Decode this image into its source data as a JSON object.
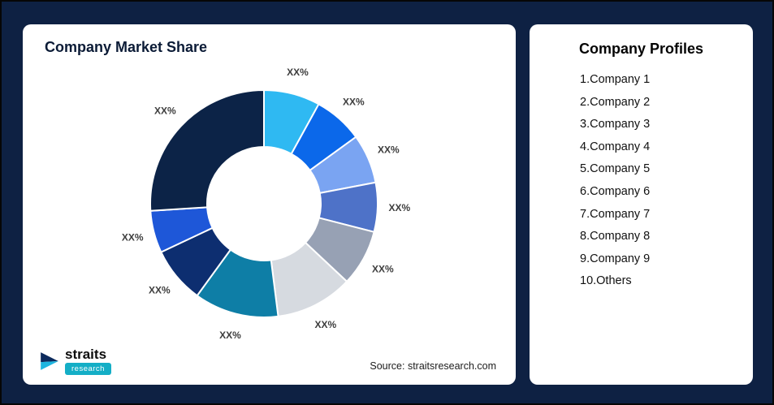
{
  "left_card": {
    "title": "Company Market Share",
    "source": "Source: straitsresearch.com",
    "logo_name": "straits",
    "logo_tag": "research"
  },
  "right_card": {
    "title": "Company Profiles",
    "items": [
      "1.Company 1",
      "2.Company 2",
      "3.Company 3",
      "4.Company 4",
      "5.Company 5",
      "6.Company 6",
      "7.Company 7",
      "8.Company 8",
      "9.Company 9",
      "10.Others"
    ]
  },
  "chart_data": {
    "type": "pie",
    "subtype": "donut",
    "title": "Company Market Share",
    "start_angle_deg": 0,
    "direction": "clockwise",
    "companies": [
      "Company 1",
      "Company 2",
      "Company 3",
      "Company 4",
      "Company 5",
      "Company 6",
      "Company 7",
      "Company 8",
      "Company 9",
      "Others"
    ],
    "segments": [
      {
        "label": "XX%",
        "value": 8,
        "color": "#2FB9F2"
      },
      {
        "label": "XX%",
        "value": 7,
        "color": "#0B68EA"
      },
      {
        "label": "XX%",
        "value": 7,
        "color": "#7AA4F2"
      },
      {
        "label": "XX%",
        "value": 7,
        "color": "#4E72C8"
      },
      {
        "label": "XX%",
        "value": 8,
        "color": "#97A1B4"
      },
      {
        "label": "XX%",
        "value": 11,
        "color": "#D6DAE0"
      },
      {
        "label": "XX%",
        "value": 12,
        "color": "#0E7EA6"
      },
      {
        "label": "XX%",
        "value": 8,
        "color": "#0D2E70"
      },
      {
        "label": "XX%",
        "value": 6,
        "color": "#1E57D8"
      },
      {
        "label": "XX%",
        "value": 26,
        "color": "#0C2347"
      }
    ]
  }
}
